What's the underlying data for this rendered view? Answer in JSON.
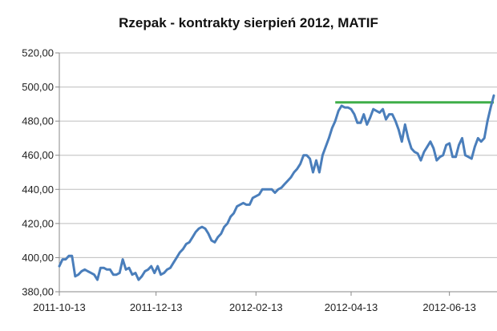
{
  "chart_data": {
    "type": "line",
    "title": "Rzepak - kontrakty sierpień 2012, MATIF",
    "xlabel": "",
    "ylabel": "",
    "ylim": [
      380,
      520
    ],
    "y_ticks": [
      "380,00",
      "400,00",
      "420,00",
      "440,00",
      "460,00",
      "480,00",
      "500,00",
      "520,00"
    ],
    "x_ticks": [
      "2011-10-13",
      "2011-12-13",
      "2012-02-13",
      "2012-04-13",
      "2012-06-13"
    ],
    "grid": true,
    "legend": "none",
    "colors": {
      "series": "#4a7ebb",
      "resistance": "#3fae49",
      "grid": "#bdbdbd",
      "axis": "#888888"
    },
    "series": [
      {
        "values": [
          [
            0,
            395
          ],
          [
            2,
            399
          ],
          [
            4,
            399
          ],
          [
            6,
            401
          ],
          [
            8,
            401
          ],
          [
            10,
            389
          ],
          [
            12,
            390
          ],
          [
            14,
            392
          ],
          [
            16,
            393
          ],
          [
            18,
            392
          ],
          [
            20,
            391
          ],
          [
            22,
            390
          ],
          [
            24,
            387
          ],
          [
            26,
            394
          ],
          [
            28,
            394
          ],
          [
            30,
            393
          ],
          [
            32,
            393
          ],
          [
            34,
            390
          ],
          [
            36,
            390
          ],
          [
            38,
            391
          ],
          [
            40,
            399
          ],
          [
            42,
            393
          ],
          [
            44,
            394
          ],
          [
            46,
            390
          ],
          [
            48,
            391
          ],
          [
            50,
            387
          ],
          [
            52,
            389
          ],
          [
            54,
            392
          ],
          [
            56,
            393
          ],
          [
            58,
            395
          ],
          [
            60,
            391
          ],
          [
            62,
            395
          ],
          [
            64,
            390
          ],
          [
            66,
            391
          ],
          [
            68,
            393
          ],
          [
            70,
            394
          ],
          [
            72,
            397
          ],
          [
            74,
            400
          ],
          [
            76,
            403
          ],
          [
            78,
            405
          ],
          [
            80,
            408
          ],
          [
            82,
            409
          ],
          [
            84,
            412
          ],
          [
            86,
            415
          ],
          [
            88,
            417
          ],
          [
            90,
            418
          ],
          [
            92,
            417
          ],
          [
            94,
            414
          ],
          [
            96,
            410
          ],
          [
            98,
            409
          ],
          [
            100,
            412
          ],
          [
            102,
            414
          ],
          [
            104,
            418
          ],
          [
            106,
            420
          ],
          [
            108,
            424
          ],
          [
            110,
            426
          ],
          [
            112,
            430
          ],
          [
            114,
            431
          ],
          [
            116,
            432
          ],
          [
            118,
            431
          ],
          [
            120,
            431
          ],
          [
            122,
            435
          ],
          [
            124,
            436
          ],
          [
            126,
            437
          ],
          [
            128,
            440
          ],
          [
            130,
            440
          ],
          [
            132,
            440
          ],
          [
            134,
            440
          ],
          [
            136,
            438
          ],
          [
            138,
            440
          ],
          [
            140,
            441
          ],
          [
            142,
            443
          ],
          [
            144,
            445
          ],
          [
            146,
            447
          ],
          [
            148,
            450
          ],
          [
            150,
            452
          ],
          [
            152,
            455
          ],
          [
            154,
            460
          ],
          [
            156,
            460
          ],
          [
            158,
            458
          ],
          [
            160,
            450
          ],
          [
            162,
            457
          ],
          [
            164,
            450
          ],
          [
            166,
            460
          ],
          [
            168,
            465
          ],
          [
            170,
            470
          ],
          [
            172,
            476
          ],
          [
            174,
            480
          ],
          [
            176,
            486
          ],
          [
            178,
            489
          ],
          [
            180,
            488
          ],
          [
            182,
            488
          ],
          [
            184,
            487
          ],
          [
            186,
            484
          ],
          [
            188,
            479
          ],
          [
            190,
            479
          ],
          [
            192,
            484
          ],
          [
            194,
            478
          ],
          [
            196,
            482
          ],
          [
            198,
            487
          ],
          [
            200,
            486
          ],
          [
            202,
            485
          ],
          [
            204,
            487
          ],
          [
            206,
            481
          ],
          [
            208,
            484
          ],
          [
            210,
            484
          ],
          [
            212,
            480
          ],
          [
            214,
            475
          ],
          [
            216,
            468
          ],
          [
            218,
            478
          ],
          [
            220,
            470
          ],
          [
            222,
            464
          ],
          [
            224,
            462
          ],
          [
            226,
            461
          ],
          [
            228,
            457
          ],
          [
            230,
            462
          ],
          [
            232,
            465
          ],
          [
            234,
            468
          ],
          [
            236,
            464
          ],
          [
            238,
            457
          ],
          [
            240,
            459
          ],
          [
            242,
            460
          ],
          [
            244,
            466
          ],
          [
            246,
            467
          ],
          [
            248,
            459
          ],
          [
            250,
            459
          ],
          [
            252,
            466
          ],
          [
            254,
            470
          ],
          [
            256,
            460
          ],
          [
            258,
            459
          ],
          [
            260,
            458
          ],
          [
            262,
            465
          ],
          [
            264,
            470
          ],
          [
            266,
            468
          ],
          [
            268,
            470
          ],
          [
            270,
            480
          ],
          [
            272,
            488
          ],
          [
            274,
            495
          ]
        ]
      }
    ],
    "annotations": [
      {
        "type": "horizontal-line",
        "y": 491,
        "x_from": 174,
        "x_to": 274
      }
    ]
  }
}
